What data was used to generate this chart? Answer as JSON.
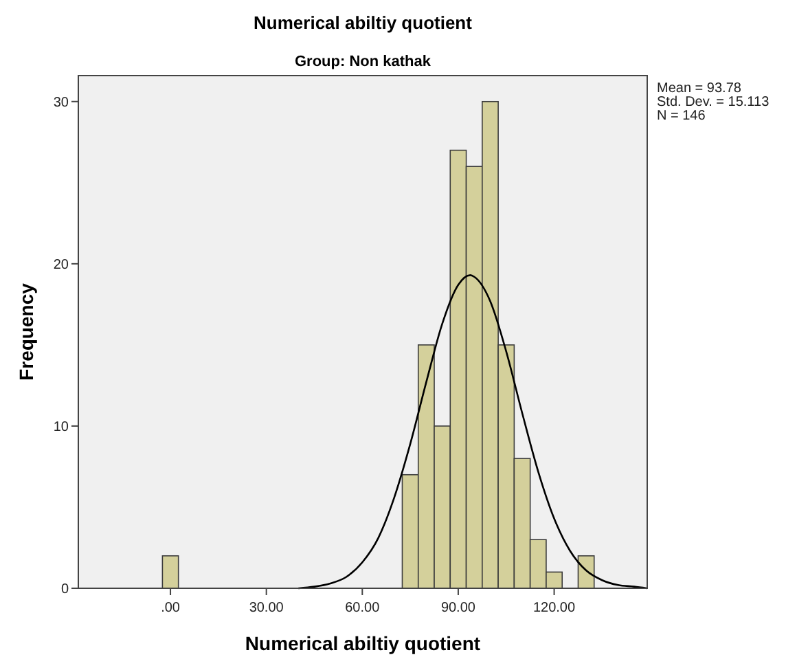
{
  "chart_data": {
    "type": "histogram",
    "title": "Numerical abiltiy quotient",
    "subtitle": "Group: Non kathak",
    "xlabel": "Numerical abiltiy quotient",
    "ylabel": "Frequency",
    "annotations": [
      "Mean = 93.78",
      "Std. Dev. = 15.113",
      "N = 146"
    ],
    "bins": [
      -2.5,
      2.5,
      7.5,
      12.5,
      17.5,
      22.5,
      27.5,
      32.5,
      37.5,
      42.5,
      47.5,
      52.5,
      57.5,
      62.5,
      67.5,
      72.5,
      77.5,
      82.5,
      87.5,
      92.5,
      97.5,
      102.5,
      107.5,
      112.5,
      117.5,
      122.5,
      127.5,
      132.5
    ],
    "values": [
      2,
      0,
      0,
      0,
      0,
      0,
      0,
      0,
      0,
      0,
      0,
      0,
      0,
      0,
      0,
      7,
      15,
      10,
      27,
      26,
      30,
      15,
      8,
      3,
      1,
      0,
      2
    ],
    "color": "#d4d09b",
    "series": [
      {
        "type": "line",
        "color": "#000000",
        "x": [
          40,
          45,
          50,
          55,
          60,
          65,
          70,
          75,
          80,
          85,
          90,
          93.78,
          95,
          100,
          105,
          110,
          115,
          120,
          125,
          130,
          135,
          140,
          145,
          149
        ],
        "values": [
          0,
          0.1,
          0.3,
          0.7,
          1.6,
          3.1,
          5.6,
          8.9,
          12.7,
          16.3,
          18.7,
          19.3,
          19.2,
          17.7,
          14.6,
          10.8,
          7.2,
          4.3,
          2.3,
          1.1,
          0.5,
          0.2,
          0.1,
          0
        ]
      }
    ],
    "xlim": [
      -28.8,
      149.1
    ],
    "ylim": [
      0,
      31.6
    ],
    "xticks": [
      {
        "value": 0,
        "label": ".00"
      },
      {
        "value": 30,
        "label": "30.00"
      },
      {
        "value": 60,
        "label": "60.00"
      },
      {
        "value": 90,
        "label": "90.00"
      },
      {
        "value": 120,
        "label": "120.00"
      }
    ],
    "yticks": [
      0,
      10,
      20,
      30
    ],
    "grid": false,
    "marker": "none",
    "line_style": "solid"
  }
}
